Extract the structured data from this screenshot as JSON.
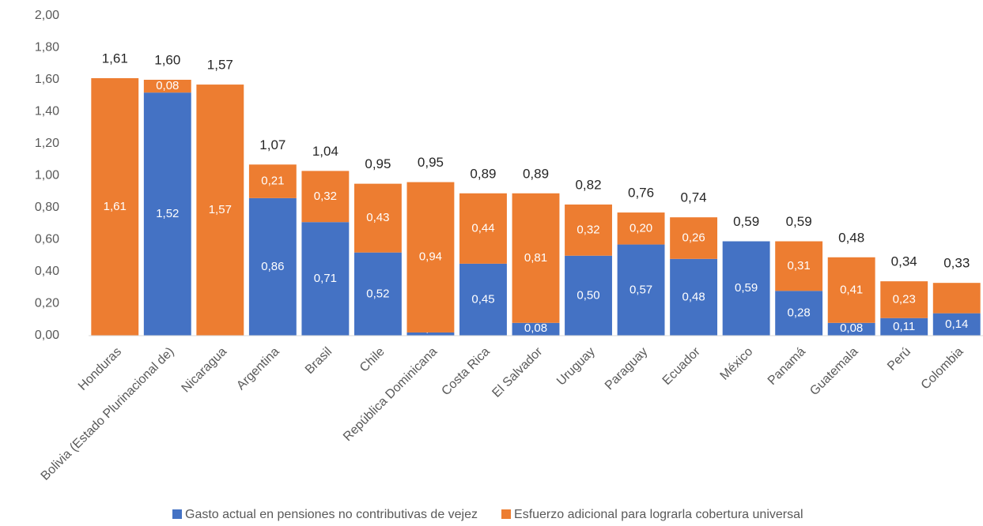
{
  "chart_data": {
    "type": "stacked_bar",
    "categories": [
      "Honduras",
      "Bolivia (Estado Plurinacional de)",
      "Nicaragua",
      "Argentina",
      "Brasil",
      "Chile",
      "República Dominicana",
      "Costa Rica",
      "El Salvador",
      "Uruguay",
      "Paraguay",
      "Ecuador",
      "México",
      "Panamá",
      "Guatemala",
      "Perú",
      "Colombia"
    ],
    "series": [
      {
        "name": "Gasto actual en pensiones no contributivas de vejez",
        "color": "#4472c4",
        "values": [
          null,
          1.52,
          null,
          0.86,
          0.71,
          0.52,
          0.02,
          0.45,
          0.08,
          0.5,
          0.57,
          0.48,
          0.59,
          0.28,
          0.08,
          0.11,
          0.14
        ],
        "value_labels": [
          null,
          "1,52",
          null,
          "0,86",
          "0,71",
          "0,52",
          "0,02",
          "0,45",
          "0,08",
          "0,50",
          "0,57",
          "0,48",
          "0,59",
          "0,28",
          "0,08",
          "0,11",
          "0,14"
        ]
      },
      {
        "name": "Esfuerzo adicional para lograrla cobertura universal",
        "color": "#ed7d31",
        "values": [
          1.61,
          0.08,
          1.57,
          0.21,
          0.32,
          0.43,
          0.94,
          0.44,
          0.81,
          0.32,
          0.2,
          0.26,
          null,
          0.31,
          0.41,
          0.23,
          0.19
        ],
        "value_labels": [
          "1,61",
          "0,08",
          "1,57",
          "0,21",
          "0,32",
          "0,43",
          "0,94",
          "0,44",
          "0,81",
          "0,32",
          "0,20",
          "0,26",
          null,
          "0,31",
          "0,41",
          "0,23",
          null
        ]
      }
    ],
    "totals": [
      1.61,
      1.6,
      1.57,
      1.07,
      1.04,
      0.95,
      0.95,
      0.89,
      0.89,
      0.82,
      0.76,
      0.74,
      0.59,
      0.59,
      0.48,
      0.34,
      0.33
    ],
    "total_labels": [
      "1,61",
      "1,60",
      "1,57",
      "1,07",
      "1,04",
      "0,95",
      "0,95",
      "0,89",
      "0,89",
      "0,82",
      "0,76",
      "0,74",
      "0,59",
      "0,59",
      "0,48",
      "0,34",
      "0,33"
    ],
    "ylim": [
      0,
      2
    ],
    "yticks": [
      {
        "value": 0,
        "label": "0,00"
      },
      {
        "value": 0.2,
        "label": "0,20"
      },
      {
        "value": 0.4,
        "label": "0,40"
      },
      {
        "value": 0.6,
        "label": "0,60"
      },
      {
        "value": 0.8,
        "label": "0,80"
      },
      {
        "value": 1.0,
        "label": "1,00"
      },
      {
        "value": 1.2,
        "label": "1,20"
      },
      {
        "value": 1.4,
        "label": "1,40"
      },
      {
        "value": 1.6,
        "label": "1,60"
      },
      {
        "value": 1.8,
        "label": "1,80"
      },
      {
        "value": 2.0,
        "label": "2,00"
      }
    ],
    "grid": false,
    "legend": "bottom"
  }
}
